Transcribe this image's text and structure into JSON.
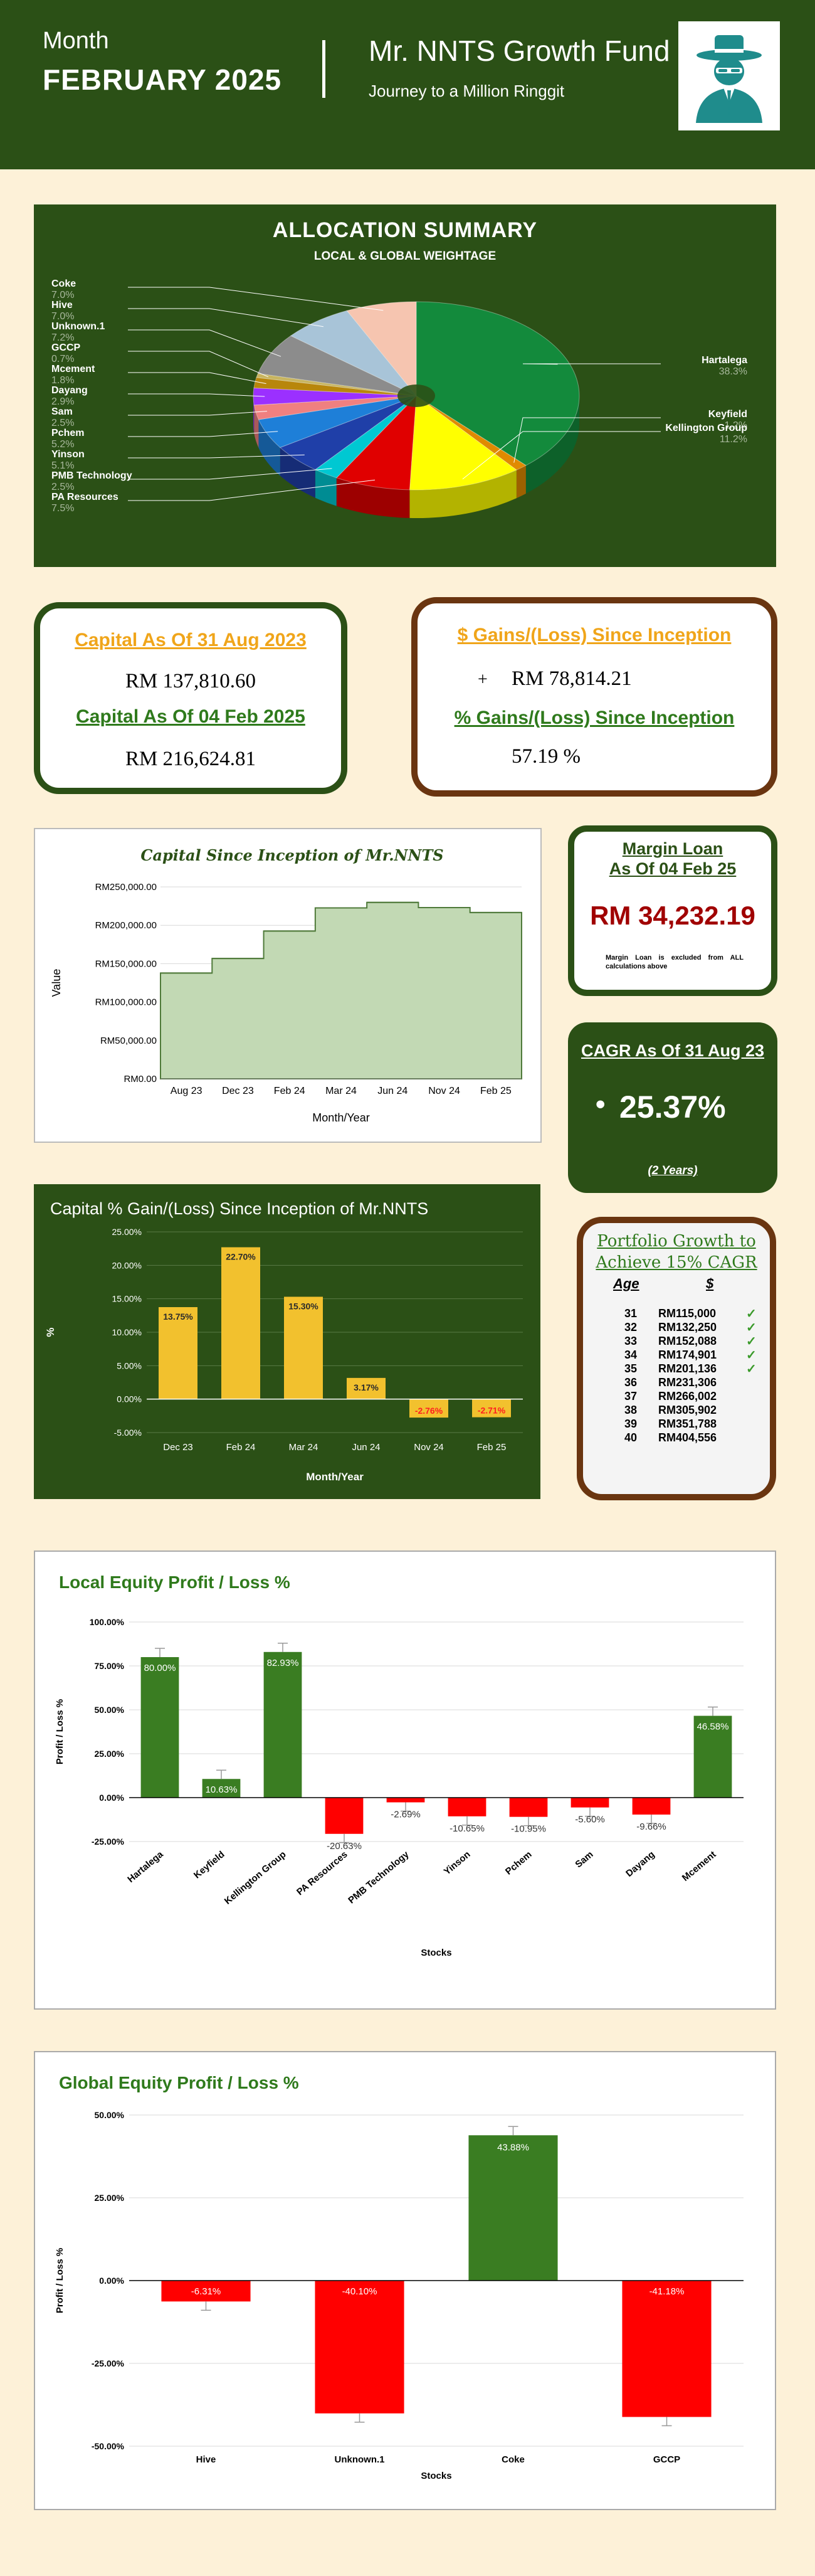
{
  "header": {
    "month_label": "Month",
    "month": "FEBRUARY  2025",
    "title": "Mr. NNTS Growth Fund",
    "subtitle": "Journey to a Million Ringgit",
    "logo_icon": "detective-icon"
  },
  "capital_card": {
    "title1": "Capital As Of 31 Aug 2023",
    "value1": "RM 137,810.60",
    "title2": "Capital As Of 04 Feb 2025",
    "value2": "RM 216,624.81"
  },
  "gains_card": {
    "title1": "$ Gains/(Loss) Since Inception",
    "sign": "+",
    "value1": "RM 78,814.21",
    "title2": "% Gains/(Loss) Since Inception",
    "value2": "57.19 %"
  },
  "margin_card": {
    "title_line1": "Margin Loan",
    "title_line2": "As Of 04 Feb 25",
    "value": "RM 34,232.19",
    "note": "Margin Loan is excluded from ALL calculations above"
  },
  "cagr_card": {
    "title": "CAGR As Of 31 Aug 23",
    "value": "25.37%",
    "bullet": "•",
    "period": "(2 Years)"
  },
  "growth_card": {
    "title_line1": "Portfolio Growth to",
    "title_line2": "Achieve 15% CAGR",
    "col_age": "Age",
    "col_value": "$",
    "check_icon": "check-icon",
    "rows": [
      {
        "age": "31",
        "value": "RM115,000",
        "done": true
      },
      {
        "age": "32",
        "value": "RM132,250",
        "done": true
      },
      {
        "age": "33",
        "value": "RM152,088",
        "done": true
      },
      {
        "age": "34",
        "value": "RM174,901",
        "done": true
      },
      {
        "age": "35",
        "value": "RM201,136",
        "done": true
      },
      {
        "age": "36",
        "value": "RM231,306",
        "done": false
      },
      {
        "age": "37",
        "value": "RM266,002",
        "done": false
      },
      {
        "age": "38",
        "value": "RM305,902",
        "done": false
      },
      {
        "age": "39",
        "value": "RM351,788",
        "done": false
      },
      {
        "age": "40",
        "value": "RM404,556",
        "done": false
      }
    ]
  },
  "colors": {
    "dark_green": "#2b5016",
    "brown": "#6a3510",
    "gold_bar": "#f2c12e",
    "green_bar": "#3a7d22",
    "red_bar": "#ff0000"
  },
  "chart_data": [
    {
      "id": "allocation",
      "type": "pie",
      "title": "ALLOCATION SUMMARY",
      "subtitle": "LOCAL & GLOBAL WEIGHTAGE",
      "slices": [
        {
          "name": "Hartalega",
          "pct_label": "38.3%",
          "value": 38.3,
          "color": "#138a3c"
        },
        {
          "name": "Keyfield",
          "pct_label": "1.2%",
          "value": 1.2,
          "color": "#e08a00"
        },
        {
          "name": "Kellington Group",
          "pct_label": "11.2%",
          "value": 11.2,
          "color": "#ffff00"
        },
        {
          "name": "PA Resources",
          "pct_label": "7.5%",
          "value": 7.5,
          "color": "#e00000"
        },
        {
          "name": "PMB Technology",
          "pct_label": "2.5%",
          "value": 2.5,
          "color": "#00c8d2"
        },
        {
          "name": "Yinson",
          "pct_label": "5.1%",
          "value": 5.1,
          "color": "#1f3fa8"
        },
        {
          "name": "Pchem",
          "pct_label": "5.2%",
          "value": 5.2,
          "color": "#1e7fd8"
        },
        {
          "name": "Sam",
          "pct_label": "2.5%",
          "value": 2.5,
          "color": "#f08080"
        },
        {
          "name": "Dayang",
          "pct_label": "2.9%",
          "value": 2.9,
          "color": "#9b30ff"
        },
        {
          "name": "Mcement",
          "pct_label": "1.8%",
          "value": 1.8,
          "color": "#b8860b"
        },
        {
          "name": "GCCP",
          "pct_label": "0.7%",
          "value": 0.7,
          "color": "#c8b560"
        },
        {
          "name": "Unknown.1",
          "pct_label": "7.2%",
          "value": 7.2,
          "color": "#8c8c8c"
        },
        {
          "name": "Hive",
          "pct_label": "7.0%",
          "value": 7.0,
          "color": "#a8c4d8"
        },
        {
          "name": "Coke",
          "pct_label": "7.0%",
          "value": 7.0,
          "color": "#f6c5b0"
        }
      ]
    },
    {
      "id": "capital_line",
      "type": "area",
      "title": "Capital Since Inception of Mr.NNTS",
      "xlabel": "Month/Year",
      "ylabel": "Value",
      "x_ticks": [
        "Aug 23",
        "Dec 23",
        "Feb 24",
        "Mar 24",
        "Jun 24",
        "Nov 24",
        "Feb 25"
      ],
      "y_ticks": [
        "RM0.00",
        "RM50,000.00",
        "RM100,000.00",
        "RM150,000.00",
        "RM200,000.00",
        "RM250,000.00"
      ],
      "ylim": [
        0,
        250000
      ],
      "values": [
        137810.6,
        156800,
        192500,
        222600,
        229800,
        223000,
        216624.81
      ]
    },
    {
      "id": "capital_gain",
      "type": "bar",
      "title": "Capital % Gain/(Loss) Since Inception of Mr.NNTS",
      "xlabel": "Month/Year",
      "ylabel": "%",
      "categories": [
        "Dec 23",
        "Feb 24",
        "Mar 24",
        "Jun 24",
        "Nov 24",
        "Feb 25"
      ],
      "values": [
        13.75,
        22.7,
        15.3,
        3.17,
        -2.76,
        -2.71
      ],
      "labels": [
        "13.75%",
        "22.70%",
        "15.30%",
        "3.17%",
        "-2.76%",
        "-2.71%"
      ],
      "y_ticks": [
        "-5.00%",
        "0.00%",
        "5.00%",
        "10.00%",
        "15.00%",
        "20.00%",
        "25.00%"
      ],
      "ylim": [
        -5,
        25
      ]
    },
    {
      "id": "local_equity",
      "type": "bar",
      "title": "Local Equity Profit / Loss %",
      "xlabel": "Stocks",
      "ylabel": "Profit / Loss %",
      "categories": [
        "Hartalega",
        "Keyfield",
        "Kellington Group",
        "PA Resources",
        "PMB Technology",
        "Yinson",
        "Pchem",
        "Sam",
        "Dayang",
        "Mcement"
      ],
      "values": [
        80.0,
        10.63,
        82.93,
        -20.63,
        -2.69,
        -10.65,
        -10.95,
        -5.6,
        -9.66,
        46.58
      ],
      "labels": [
        "80.00%",
        "10.63%",
        "82.93%",
        "-20.63%",
        "-2.69%",
        "-10.65%",
        "-10.95%",
        "-5.60%",
        "-9.66%",
        "46.58%"
      ],
      "y_ticks": [
        "-25.00%",
        "0.00%",
        "25.00%",
        "50.00%",
        "75.00%",
        "100.00%"
      ],
      "ylim": [
        -25,
        100
      ]
    },
    {
      "id": "global_equity",
      "type": "bar",
      "title": "Global Equity Profit / Loss %",
      "xlabel": "Stocks",
      "ylabel": "Profit / Loss %",
      "categories": [
        "Hive",
        "Unknown.1",
        "Coke",
        "GCCP"
      ],
      "values": [
        -6.31,
        -40.1,
        43.88,
        -41.18
      ],
      "labels": [
        "-6.31%",
        "-40.10%",
        "43.88%",
        "-41.18%"
      ],
      "y_ticks": [
        "-50.00%",
        "-25.00%",
        "0.00%",
        "25.00%",
        "50.00%"
      ],
      "ylim": [
        -50,
        50
      ]
    }
  ]
}
